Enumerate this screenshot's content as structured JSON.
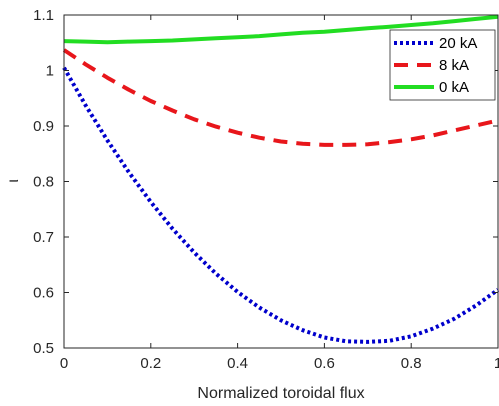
{
  "chart_data": {
    "type": "line",
    "xlabel": "Normalized toroidal flux",
    "ylabel": "ι",
    "xlim": [
      0,
      1
    ],
    "ylim": [
      0.5,
      1.1
    ],
    "xticks": [
      "0",
      "0.2",
      "0.4",
      "0.6",
      "0.8",
      "1"
    ],
    "yticks": [
      "0.5",
      "0.6",
      "0.7",
      "0.8",
      "0.9",
      "1",
      "1.1"
    ],
    "grid": false,
    "legend": "top-right",
    "x": [
      0,
      0.05,
      0.1,
      0.15,
      0.2,
      0.25,
      0.3,
      0.35,
      0.4,
      0.45,
      0.5,
      0.55,
      0.6,
      0.65,
      0.7,
      0.75,
      0.8,
      0.85,
      0.9,
      0.95,
      1
    ],
    "series": [
      {
        "name": "20 kA",
        "color": "#0000cc",
        "style": "dotted",
        "values": [
          1.005,
          0.937,
          0.874,
          0.816,
          0.763,
          0.715,
          0.672,
          0.634,
          0.601,
          0.573,
          0.55,
          0.532,
          0.519,
          0.512,
          0.511,
          0.513,
          0.521,
          0.535,
          0.553,
          0.577,
          0.605
        ]
      },
      {
        "name": "8 kA",
        "color": "#e8161b",
        "style": "dashed",
        "values": [
          1.037,
          1.011,
          0.987,
          0.965,
          0.945,
          0.928,
          0.912,
          0.899,
          0.888,
          0.879,
          0.872,
          0.868,
          0.866,
          0.866,
          0.867,
          0.871,
          0.876,
          0.883,
          0.892,
          0.901,
          0.91
        ]
      },
      {
        "name": "0 kA",
        "color": "#22dd22",
        "style": "solid",
        "values": [
          1.053,
          1.052,
          1.051,
          1.052,
          1.053,
          1.054,
          1.056,
          1.058,
          1.06,
          1.062,
          1.065,
          1.068,
          1.07,
          1.073,
          1.076,
          1.079,
          1.082,
          1.085,
          1.089,
          1.093,
          1.097
        ]
      }
    ]
  }
}
